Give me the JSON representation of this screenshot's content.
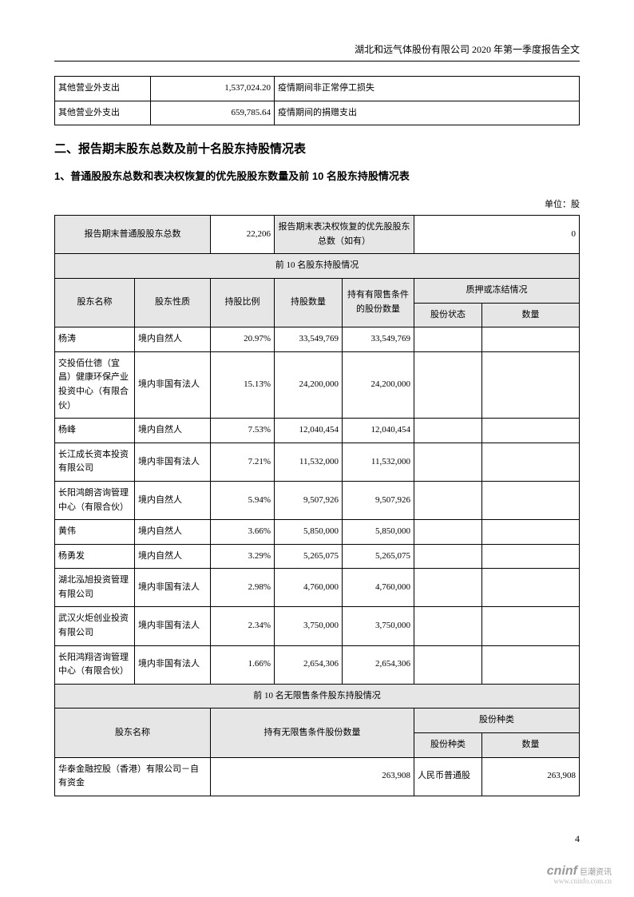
{
  "header": {
    "title": "湖北和远气体股份有限公司 2020 年第一季度报告全文"
  },
  "expense_table": {
    "rows": [
      {
        "item": "其他营业外支出",
        "amount": "1,537,024.20",
        "description": "疫情期间非正常停工损失"
      },
      {
        "item": "其他营业外支出",
        "amount": "659,785.64",
        "description": "疫情期间的捐赠支出"
      }
    ]
  },
  "section2": {
    "title": "二、报告期末股东总数及前十名股东持股情况表",
    "sub_title": "1、普通股股东总数和表决权恢复的优先股股东数量及前 10 名股东持股情况表",
    "unit": "单位：股"
  },
  "summary": {
    "label1": "报告期末普通股股东总数",
    "value1": "22,206",
    "label2": "报告期末表决权恢复的优先股股东总数（如有）",
    "value2": "0"
  },
  "top10": {
    "caption": "前 10 名股东持股情况",
    "columns": {
      "name": "股东名称",
      "nature": "股东性质",
      "ratio": "持股比例",
      "quantity": "持股数量",
      "limited": "持有有限售条件的股份数量",
      "pledge_header": "质押或冻结情况",
      "status": "股份状态",
      "qty": "数量"
    },
    "rows": [
      {
        "name": "杨涛",
        "nature": "境内自然人",
        "ratio": "20.97%",
        "qty": "33,549,769",
        "limited": "33,549,769",
        "status": "",
        "num": ""
      },
      {
        "name": "交投佰仕德（宜昌）健康环保产业投资中心（有限合伙）",
        "nature": "境内非国有法人",
        "ratio": "15.13%",
        "qty": "24,200,000",
        "limited": "24,200,000",
        "status": "",
        "num": ""
      },
      {
        "name": "杨峰",
        "nature": "境内自然人",
        "ratio": "7.53%",
        "qty": "12,040,454",
        "limited": "12,040,454",
        "status": "",
        "num": ""
      },
      {
        "name": "长江成长资本投资有限公司",
        "nature": "境内非国有法人",
        "ratio": "7.21%",
        "qty": "11,532,000",
        "limited": "11,532,000",
        "status": "",
        "num": ""
      },
      {
        "name": "长阳鸿朗咨询管理中心（有限合伙）",
        "nature": "境内自然人",
        "ratio": "5.94%",
        "qty": "9,507,926",
        "limited": "9,507,926",
        "status": "",
        "num": ""
      },
      {
        "name": "黄伟",
        "nature": "境内自然人",
        "ratio": "3.66%",
        "qty": "5,850,000",
        "limited": "5,850,000",
        "status": "",
        "num": ""
      },
      {
        "name": "杨勇发",
        "nature": "境内自然人",
        "ratio": "3.29%",
        "qty": "5,265,075",
        "limited": "5,265,075",
        "status": "",
        "num": ""
      },
      {
        "name": "湖北泓旭投资管理有限公司",
        "nature": "境内非国有法人",
        "ratio": "2.98%",
        "qty": "4,760,000",
        "limited": "4,760,000",
        "status": "",
        "num": ""
      },
      {
        "name": "武汉火炬创业投资有限公司",
        "nature": "境内非国有法人",
        "ratio": "2.34%",
        "qty": "3,750,000",
        "limited": "3,750,000",
        "status": "",
        "num": ""
      },
      {
        "name": "长阳鸿翔咨询管理中心（有限合伙）",
        "nature": "境内非国有法人",
        "ratio": "1.66%",
        "qty": "2,654,306",
        "limited": "2,654,306",
        "status": "",
        "num": ""
      }
    ]
  },
  "unlimited": {
    "caption": "前 10 名无限售条件股东持股情况",
    "columns": {
      "name": "股东名称",
      "quantity": "持有无限售条件股份数量",
      "type_header": "股份种类",
      "type": "股份种类",
      "qty": "数量"
    },
    "rows": [
      {
        "name": "华泰金融控股（香港）有限公司－自有资金",
        "qty": "263,908",
        "type": "人民币普通股",
        "num": "263,908"
      }
    ]
  },
  "page_number": "4",
  "footer": {
    "logo": "cninf",
    "logo_cn": "巨潮资讯",
    "url": "www.cninfo.com.cn"
  }
}
